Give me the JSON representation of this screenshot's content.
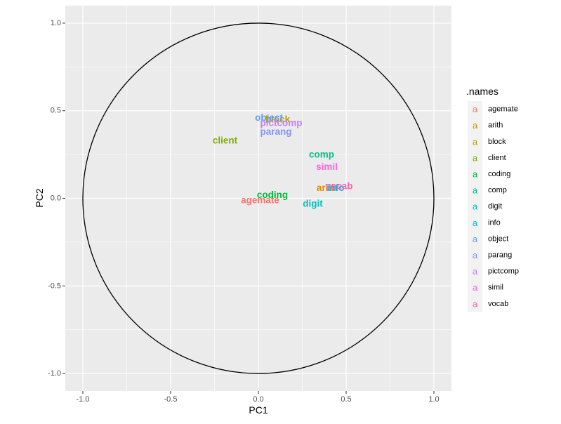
{
  "chart_data": {
    "type": "scatter",
    "xlabel": "PC1",
    "ylabel": "PC2",
    "xlim": [
      -1.1,
      1.1
    ],
    "ylim": [
      -1.1,
      1.1
    ],
    "x_ticks": [
      -1.0,
      -0.5,
      0.0,
      0.5,
      1.0
    ],
    "x_tick_labels": [
      "-1.0",
      "-0.5",
      "0.0",
      "0.5",
      "1.0"
    ],
    "y_ticks": [
      -1.0,
      -0.5,
      0.0,
      0.5,
      1.0
    ],
    "y_tick_labels": [
      "-1.0",
      "-0.5",
      "0.0",
      "0.5",
      "1.0"
    ],
    "grid": true,
    "reference_circle_radius": 1.0,
    "legend": {
      "title": ".names",
      "placement": "right",
      "key_glyph": "a"
    },
    "points": [
      {
        "name": "agemate",
        "x": 0.01,
        "y": -0.01,
        "color": "#F8766D"
      },
      {
        "name": "arith",
        "x": 0.39,
        "y": 0.06,
        "color": "#DE8C00"
      },
      {
        "name": "block",
        "x": 0.11,
        "y": 0.45,
        "color": "#B79F00"
      },
      {
        "name": "client",
        "x": -0.19,
        "y": 0.33,
        "color": "#7CAE00"
      },
      {
        "name": "coding",
        "x": 0.08,
        "y": 0.02,
        "color": "#00BA38"
      },
      {
        "name": "comp",
        "x": 0.36,
        "y": 0.25,
        "color": "#00C08B"
      },
      {
        "name": "digit",
        "x": 0.31,
        "y": -0.03,
        "color": "#00BFC4"
      },
      {
        "name": "info",
        "x": 0.44,
        "y": 0.06,
        "color": "#00B4F0"
      },
      {
        "name": "object",
        "x": 0.06,
        "y": 0.46,
        "color": "#619CFF"
      },
      {
        "name": "parang",
        "x": 0.1,
        "y": 0.38,
        "color": "#8494FF"
      },
      {
        "name": "pictcomp",
        "x": 0.13,
        "y": 0.43,
        "color": "#C77CFF"
      },
      {
        "name": "simil",
        "x": 0.39,
        "y": 0.18,
        "color": "#F564E3"
      },
      {
        "name": "vocab",
        "x": 0.46,
        "y": 0.07,
        "color": "#FF64B0"
      }
    ]
  }
}
